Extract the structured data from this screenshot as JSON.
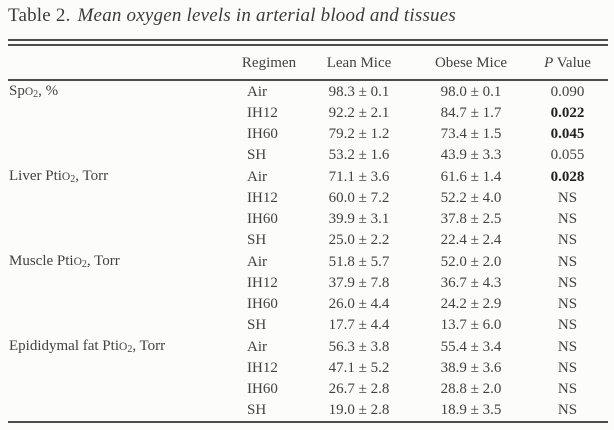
{
  "title": {
    "label": "Table 2.",
    "caption": "Mean oxygen levels in arterial blood and tissues"
  },
  "columns": {
    "regimen": "Regimen",
    "lean": "Lean Mice",
    "obese": "Obese Mice",
    "pvalue_p": "P",
    "pvalue_rest": " Value"
  },
  "colors": {
    "text": "#424242",
    "bold_text": "#212121",
    "rule": "#4d4d4d",
    "background": "#fcfcfa"
  },
  "groups": [
    {
      "label": {
        "pre": "Sp",
        "smallcap": "O",
        "sub": "2",
        "post": ", %"
      },
      "rows": [
        {
          "regimen": "Air",
          "lean": "98.3 ± 0.1",
          "obese": "98.0 ± 0.1",
          "p": "0.090",
          "p_bold": false
        },
        {
          "regimen": "IH12",
          "lean": "92.2 ± 2.1",
          "obese": "84.7 ± 1.7",
          "p": "0.022",
          "p_bold": true
        },
        {
          "regimen": "IH60",
          "lean": "79.2 ± 1.2",
          "obese": "73.4 ± 1.5",
          "p": "0.045",
          "p_bold": true
        },
        {
          "regimen": "SH",
          "lean": "53.2 ± 1.6",
          "obese": "43.9 ± 3.3",
          "p": "0.055",
          "p_bold": false
        }
      ]
    },
    {
      "label": {
        "pre": "Liver Pti",
        "smallcap": "O",
        "sub": "2",
        "post": ", Torr"
      },
      "rows": [
        {
          "regimen": "Air",
          "lean": "71.1 ± 3.6",
          "obese": "61.6 ± 1.4",
          "p": "0.028",
          "p_bold": true
        },
        {
          "regimen": "IH12",
          "lean": "60.0 ± 7.2",
          "obese": "52.2 ± 4.0",
          "p": "NS",
          "p_bold": false
        },
        {
          "regimen": "IH60",
          "lean": "39.9 ± 3.1",
          "obese": "37.8 ± 2.5",
          "p": "NS",
          "p_bold": false
        },
        {
          "regimen": "SH",
          "lean": "25.0 ± 2.2",
          "obese": "22.4 ± 2.4",
          "p": "NS",
          "p_bold": false
        }
      ]
    },
    {
      "label": {
        "pre": "Muscle Pti",
        "smallcap": "O",
        "sub": "2",
        "post": ", Torr"
      },
      "rows": [
        {
          "regimen": "Air",
          "lean": "51.8 ± 5.7",
          "obese": "52.0 ± 2.0",
          "p": "NS",
          "p_bold": false
        },
        {
          "regimen": "IH12",
          "lean": "37.9 ± 7.8",
          "obese": "36.7 ± 4.3",
          "p": "NS",
          "p_bold": false
        },
        {
          "regimen": "IH60",
          "lean": "26.0 ± 4.4",
          "obese": "24.2 ± 2.9",
          "p": "NS",
          "p_bold": false
        },
        {
          "regimen": "SH",
          "lean": "17.7 ± 4.4",
          "obese": "13.7 ± 6.0",
          "p": "NS",
          "p_bold": false
        }
      ]
    },
    {
      "label": {
        "pre": "Epididymal fat Pti",
        "smallcap": "O",
        "sub": "2",
        "post": ", Torr"
      },
      "rows": [
        {
          "regimen": "Air",
          "lean": "56.3 ± 3.8",
          "obese": "55.4 ± 3.4",
          "p": "NS",
          "p_bold": false
        },
        {
          "regimen": "IH12",
          "lean": "47.1 ± 5.2",
          "obese": "38.9 ± 3.6",
          "p": "NS",
          "p_bold": false
        },
        {
          "regimen": "IH60",
          "lean": "26.7 ± 2.8",
          "obese": "28.8 ± 2.0",
          "p": "NS",
          "p_bold": false
        },
        {
          "regimen": "SH",
          "lean": "19.0 ± 2.8",
          "obese": "18.9 ± 3.5",
          "p": "NS",
          "p_bold": false
        }
      ]
    }
  ]
}
